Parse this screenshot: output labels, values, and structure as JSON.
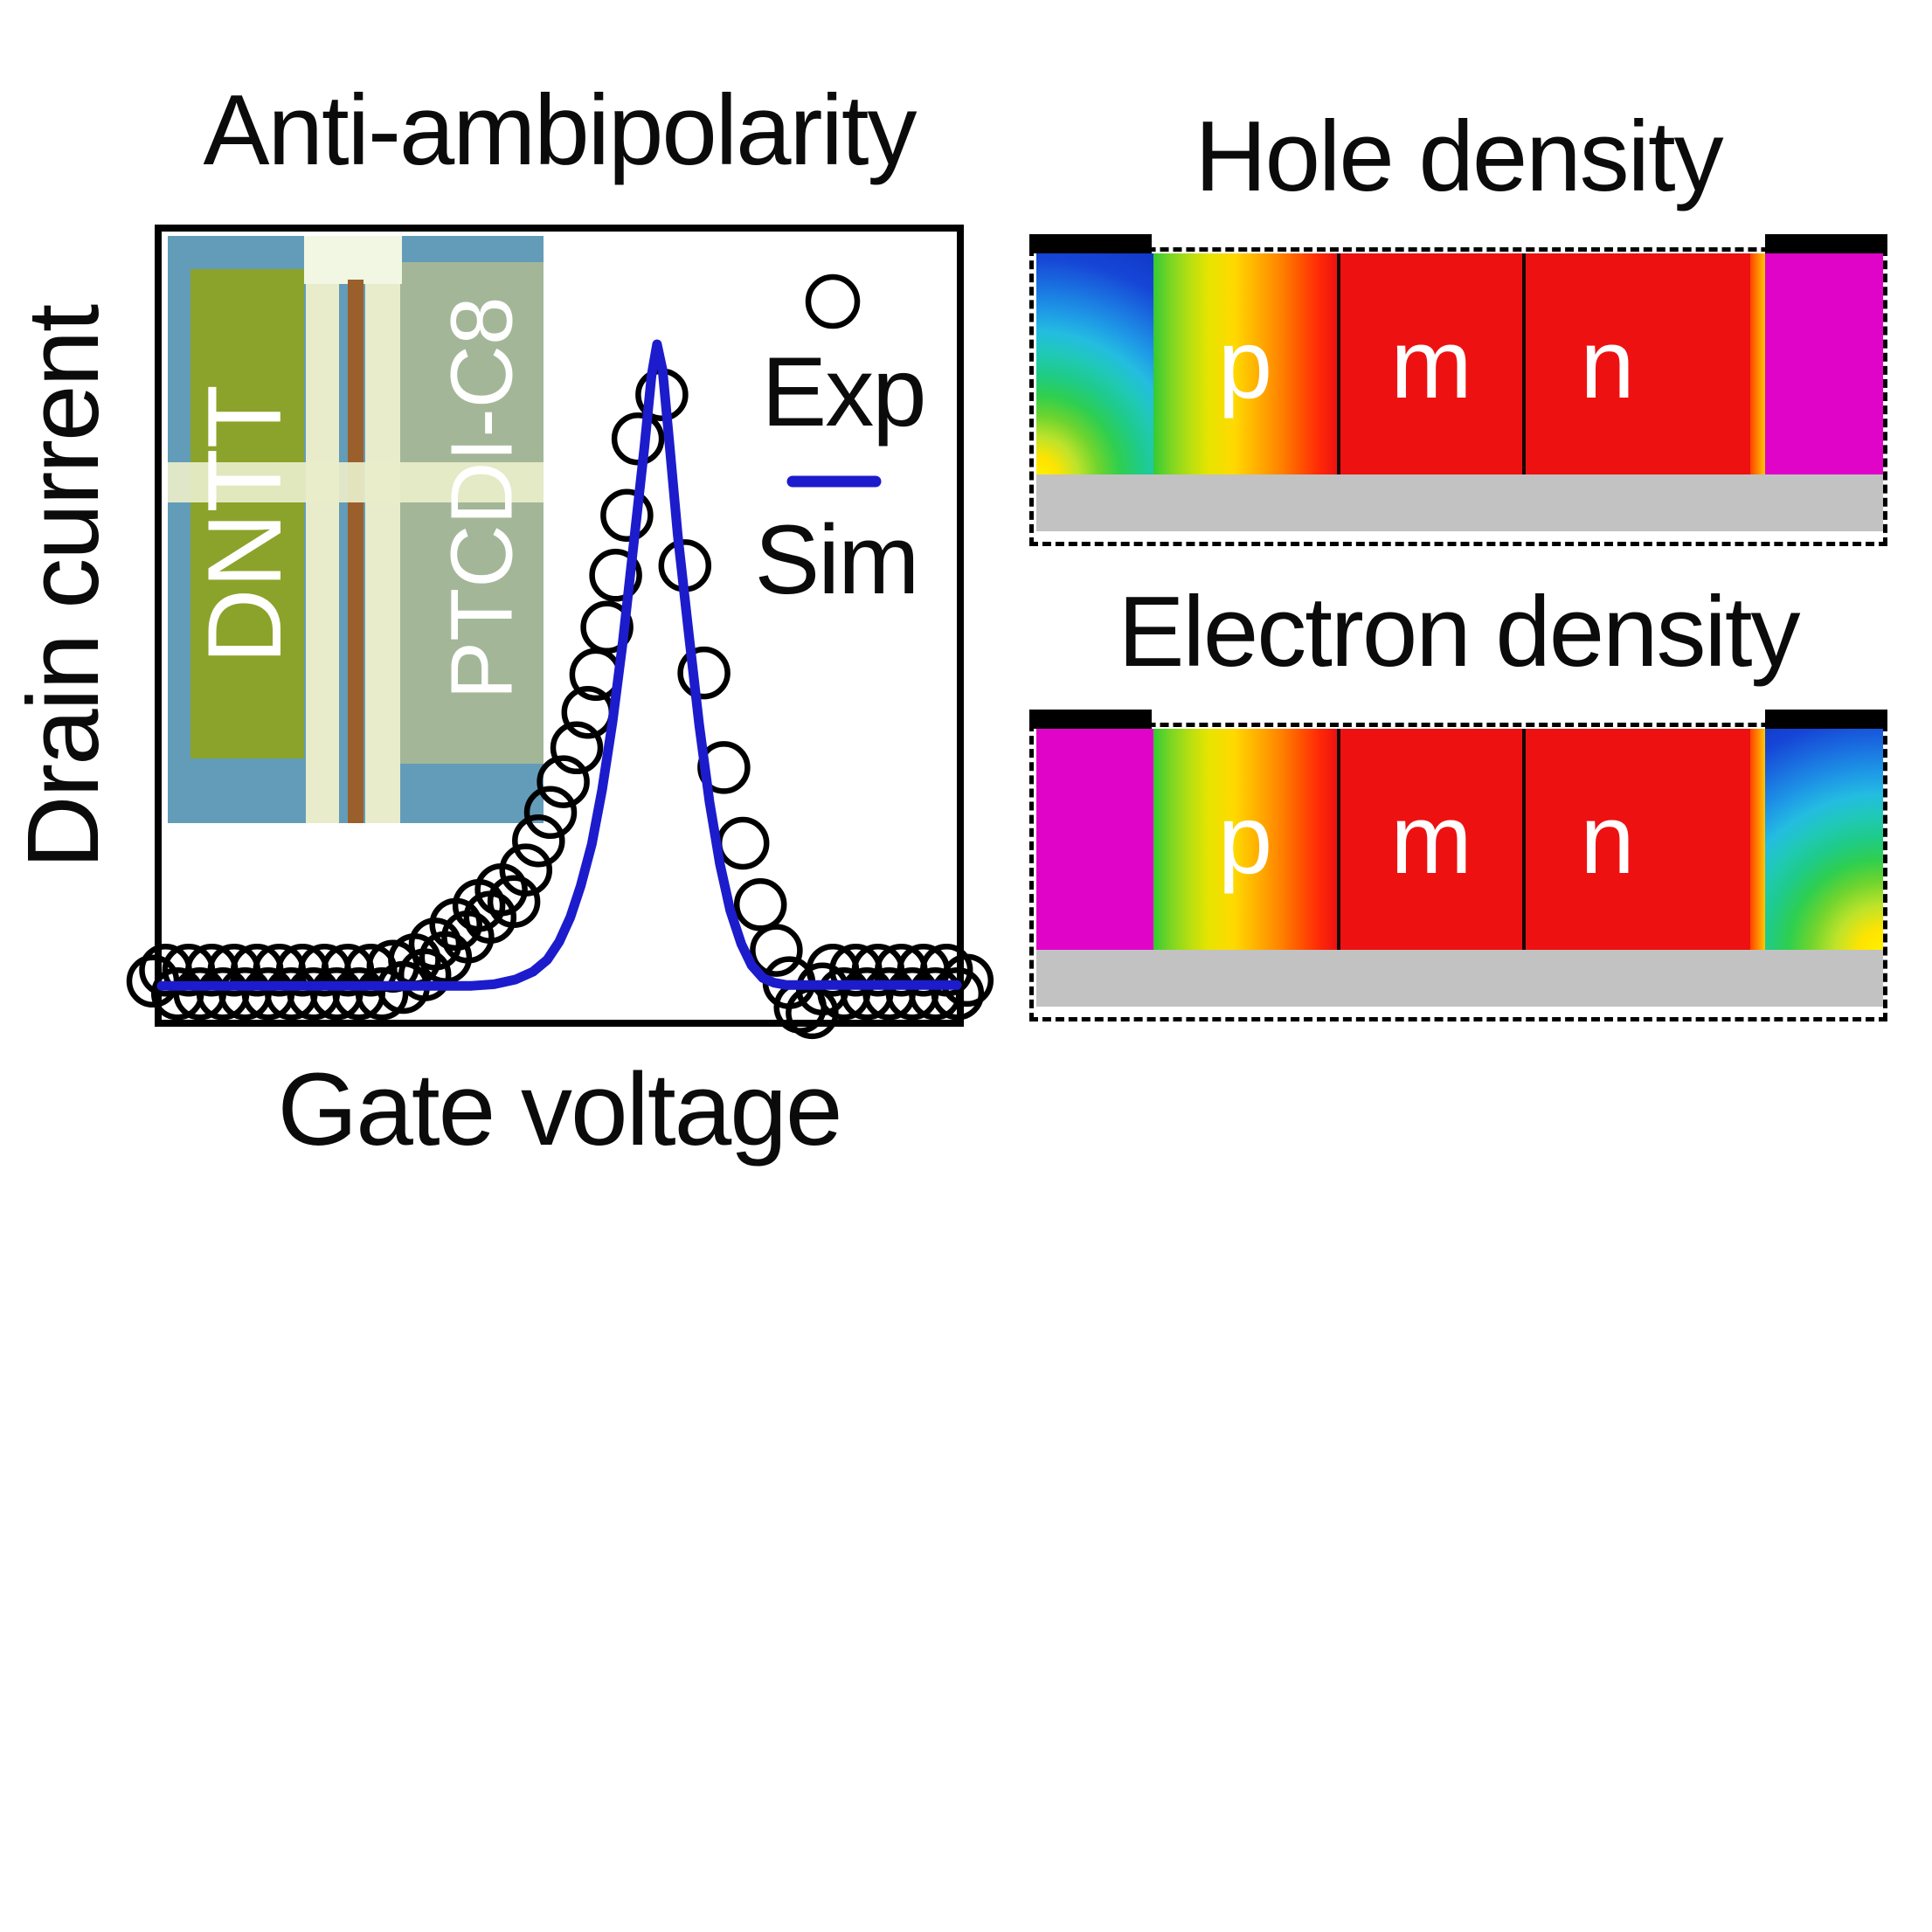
{
  "figure": {
    "left_chart_title": "Anti-ambipolarity",
    "x_axis_label": "Gate voltage",
    "y_axis_label": "Drain current"
  },
  "legend": {
    "exp_label": "Exp",
    "sim_label": "Sim"
  },
  "inset": {
    "material_left": "DNTT",
    "material_right": "PTCDI-C8"
  },
  "density_panels": [
    {
      "title": "Hole density",
      "regions": [
        "p",
        "m",
        "n"
      ]
    },
    {
      "title": "Electron density",
      "regions": [
        "p",
        "m",
        "n"
      ]
    }
  ],
  "colors": {
    "sim_line": "#1c1ccd",
    "panel_red": "#ee1111",
    "panel_magenta": "#e004c8",
    "panel_orange": "#ff8a00",
    "substrate_gray": "#c2c2c2",
    "electrode_black": "#000000",
    "inset_background": "#639cb8",
    "inset_dntt_olive": "#8ba32a",
    "inset_electrode_cream": "#e9ecca",
    "inset_gap_rust": "#9b5f2c",
    "inset_ptcdi_sage": "#a3b798"
  },
  "chart_data": {
    "type": "scatter",
    "title": "Anti-ambipolarity",
    "xlabel": "Gate voltage",
    "ylabel": "Drain current",
    "axes": {
      "ticks": "none shown",
      "units": "arbitrary",
      "xlim": [
        0,
        1
      ],
      "ylim": [
        0,
        1
      ]
    },
    "legend_position": "upper right inside plot",
    "series": [
      {
        "name": "Exp",
        "style": "open black circle markers",
        "points": [
          [
            -0.011,
            0.049
          ],
          [
            0.005,
            0.063
          ],
          [
            0.02,
            0.033
          ],
          [
            0.034,
            0.063
          ],
          [
            0.048,
            0.033
          ],
          [
            0.063,
            0.063
          ],
          [
            0.077,
            0.033
          ],
          [
            0.091,
            0.063
          ],
          [
            0.105,
            0.033
          ],
          [
            0.12,
            0.063
          ],
          [
            0.134,
            0.033
          ],
          [
            0.148,
            0.063
          ],
          [
            0.163,
            0.033
          ],
          [
            0.177,
            0.063
          ],
          [
            0.191,
            0.033
          ],
          [
            0.205,
            0.063
          ],
          [
            0.22,
            0.033
          ],
          [
            0.234,
            0.063
          ],
          [
            0.248,
            0.033
          ],
          [
            0.263,
            0.063
          ],
          [
            0.277,
            0.033
          ],
          [
            0.291,
            0.068
          ],
          [
            0.304,
            0.041
          ],
          [
            0.318,
            0.076
          ],
          [
            0.331,
            0.057
          ],
          [
            0.344,
            0.096
          ],
          [
            0.357,
            0.079
          ],
          [
            0.37,
            0.121
          ],
          [
            0.385,
            0.105
          ],
          [
            0.399,
            0.145
          ],
          [
            0.413,
            0.13
          ],
          [
            0.427,
            0.165
          ],
          [
            0.443,
            0.15
          ],
          [
            0.458,
            0.19
          ],
          [
            0.474,
            0.227
          ],
          [
            0.489,
            0.263
          ],
          [
            0.505,
            0.302
          ],
          [
            0.522,
            0.345
          ],
          [
            0.536,
            0.39
          ],
          [
            0.546,
            0.438
          ],
          [
            0.56,
            0.498
          ],
          [
            0.571,
            0.564
          ],
          [
            0.585,
            0.64
          ],
          [
            0.599,
            0.737
          ],
          [
            0.629,
            0.793
          ],
          [
            0.658,
            0.576
          ],
          [
            0.682,
            0.44
          ],
          [
            0.707,
            0.32
          ],
          [
            0.731,
            0.224
          ],
          [
            0.753,
            0.146
          ],
          [
            0.773,
            0.088
          ],
          [
            0.789,
            0.047
          ],
          [
            0.803,
            0.016
          ],
          [
            0.818,
            0.009
          ],
          [
            0.831,
            0.039
          ],
          [
            0.844,
            0.063
          ],
          [
            0.858,
            0.033
          ],
          [
            0.873,
            0.063
          ],
          [
            0.887,
            0.033
          ],
          [
            0.901,
            0.063
          ],
          [
            0.915,
            0.033
          ],
          [
            0.93,
            0.063
          ],
          [
            0.944,
            0.033
          ],
          [
            0.958,
            0.063
          ],
          [
            0.973,
            0.033
          ],
          [
            0.987,
            0.063
          ],
          [
            1.001,
            0.033
          ],
          [
            1.013,
            0.05
          ]
        ]
      },
      {
        "name": "Sim",
        "style": "solid blue line",
        "points": [
          [
            0.0,
            0.043
          ],
          [
            0.236,
            0.043
          ],
          [
            0.39,
            0.043
          ],
          [
            0.418,
            0.045
          ],
          [
            0.445,
            0.051
          ],
          [
            0.467,
            0.061
          ],
          [
            0.485,
            0.076
          ],
          [
            0.5,
            0.099
          ],
          [
            0.514,
            0.13
          ],
          [
            0.527,
            0.17
          ],
          [
            0.541,
            0.223
          ],
          [
            0.554,
            0.292
          ],
          [
            0.567,
            0.378
          ],
          [
            0.58,
            0.48
          ],
          [
            0.593,
            0.598
          ],
          [
            0.607,
            0.726
          ],
          [
            0.616,
            0.817
          ],
          [
            0.623,
            0.857
          ],
          [
            0.63,
            0.824
          ],
          [
            0.638,
            0.737
          ],
          [
            0.649,
            0.615
          ],
          [
            0.663,
            0.489
          ],
          [
            0.676,
            0.374
          ],
          [
            0.689,
            0.276
          ],
          [
            0.702,
            0.198
          ],
          [
            0.715,
            0.139
          ],
          [
            0.729,
            0.096
          ],
          [
            0.742,
            0.069
          ],
          [
            0.756,
            0.053
          ],
          [
            0.77,
            0.047
          ],
          [
            0.786,
            0.044
          ],
          [
            0.896,
            0.044
          ],
          [
            1.0,
            0.044
          ]
        ]
      }
    ]
  }
}
